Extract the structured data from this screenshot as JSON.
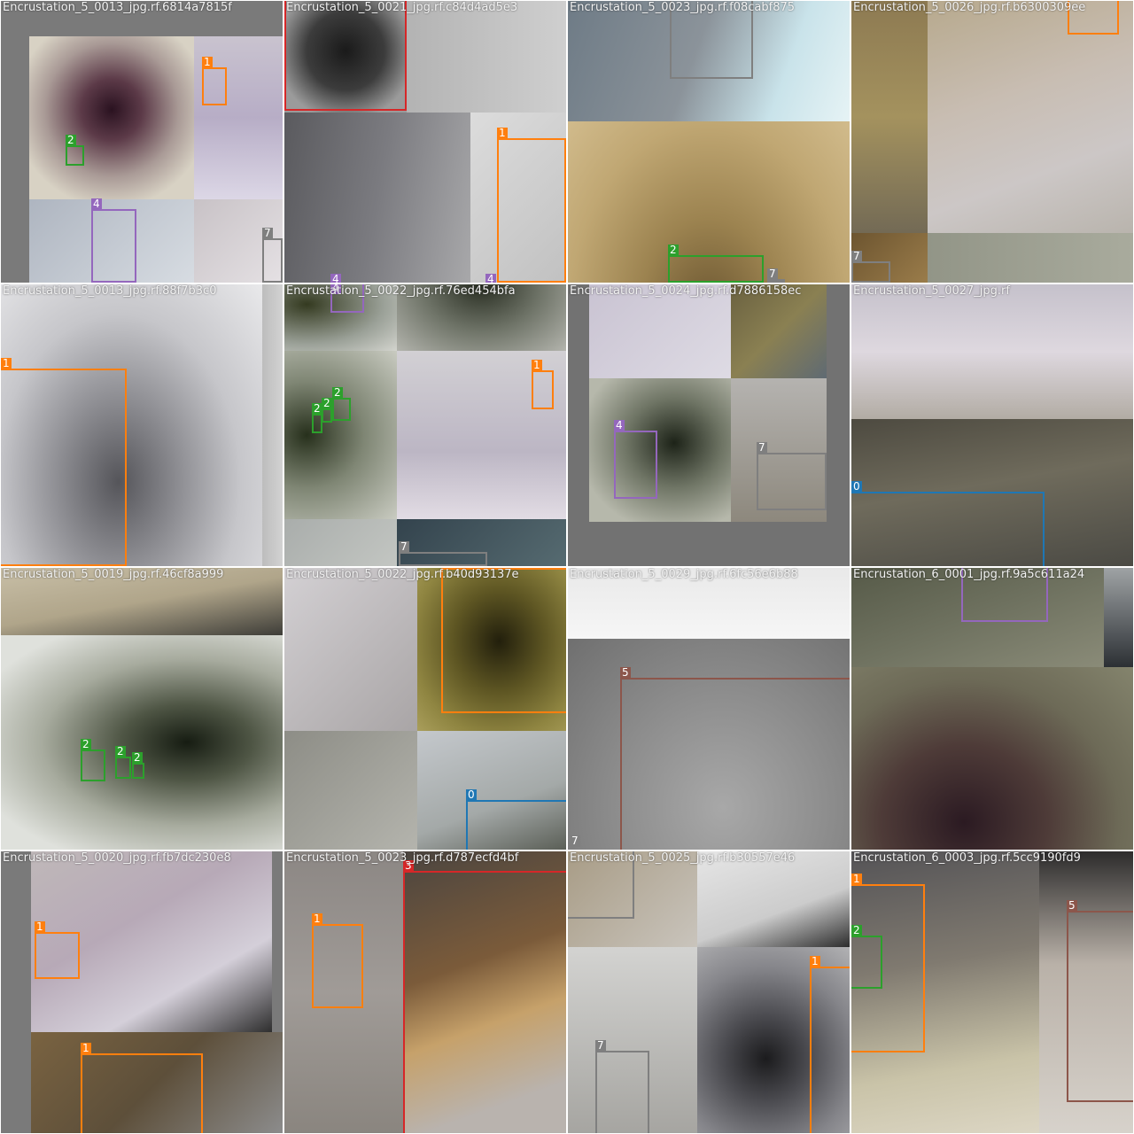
{
  "grid": {
    "rows": 4,
    "cols": 4
  },
  "class_colors": {
    "0": "#1f77b4",
    "1": "#ff7f0e",
    "2": "#2ca02c",
    "3": "#d62728",
    "4": "#9467bd",
    "5": "#8c564b",
    "7": "#7f7f7f"
  },
  "tiles": [
    {
      "caption": "Encrustation_5_0013_jpg.rf.6814a7815f",
      "boxes": [
        {
          "class": "1"
        },
        {
          "class": "2"
        },
        {
          "class": "4"
        },
        {
          "class": "7"
        }
      ]
    },
    {
      "caption": "Encrustation_5_0021_jpg.rf.c84d4ad5e3",
      "boxes": [
        {
          "class": "1"
        },
        {
          "class": "4"
        },
        {
          "class": "4"
        }
      ]
    },
    {
      "caption": "Encrustation_5_0023_jpg.rf.f08cabf875",
      "boxes": [
        {
          "class": "2"
        },
        {
          "class": "7"
        }
      ]
    },
    {
      "caption": "Encrustation_5_0026_jpg.rf.b6300309ee",
      "boxes": [
        {
          "class": "7"
        }
      ]
    },
    {
      "caption": "Encrustation_5_0013_jpg.rf.88f7b3c0",
      "boxes": [
        {
          "class": "1"
        }
      ]
    },
    {
      "caption": "Encrustation_5_0022_jpg.rf.76ed454bfa",
      "boxes": [
        {
          "class": "4"
        },
        {
          "class": "2"
        },
        {
          "class": "2"
        },
        {
          "class": "2"
        },
        {
          "class": "1"
        },
        {
          "class": "7"
        }
      ]
    },
    {
      "caption": "Encrustation_5_0024_jpg.rf.d7886158ec",
      "boxes": [
        {
          "class": "4"
        },
        {
          "class": "7"
        }
      ]
    },
    {
      "caption": "Encrustation_5_0027_jpg.rf",
      "boxes": [
        {
          "class": "0"
        }
      ]
    },
    {
      "caption": "Encrustation_5_0019_jpg.rf.46cf8a999",
      "boxes": [
        {
          "class": "2"
        },
        {
          "class": "2"
        },
        {
          "class": "2"
        }
      ]
    },
    {
      "caption": "Encrustation_5_0022_jpg.rf.b40d93137e",
      "boxes": [
        {
          "class": "1"
        },
        {
          "class": "0"
        }
      ]
    },
    {
      "caption": "Encrustation_5_0029_jpg.rf.6fc56e6b88",
      "boxes": [
        {
          "class": "5"
        },
        {
          "class": "7"
        }
      ]
    },
    {
      "caption": "Encrustation_6_0001_jpg.rf.9a5c611a24",
      "boxes": [
        {
          "class": "4"
        }
      ]
    },
    {
      "caption": "Encrustation_5_0020_jpg.rf.fb7dc230e8",
      "boxes": [
        {
          "class": "1"
        },
        {
          "class": "1"
        }
      ]
    },
    {
      "caption": "Encrustation_5_0023_jpg.rf.d787ecfd4bf",
      "boxes": [
        {
          "class": "3"
        },
        {
          "class": "1"
        }
      ]
    },
    {
      "caption": "Encrustation_5_0025_jpg.rf.b30557e46",
      "boxes": [
        {
          "class": "7"
        },
        {
          "class": "1"
        }
      ]
    },
    {
      "caption": "Encrustation_6_0003_jpg.rf.5cc9190fd9",
      "boxes": [
        {
          "class": "1"
        },
        {
          "class": "2"
        },
        {
          "class": "5"
        }
      ]
    }
  ]
}
